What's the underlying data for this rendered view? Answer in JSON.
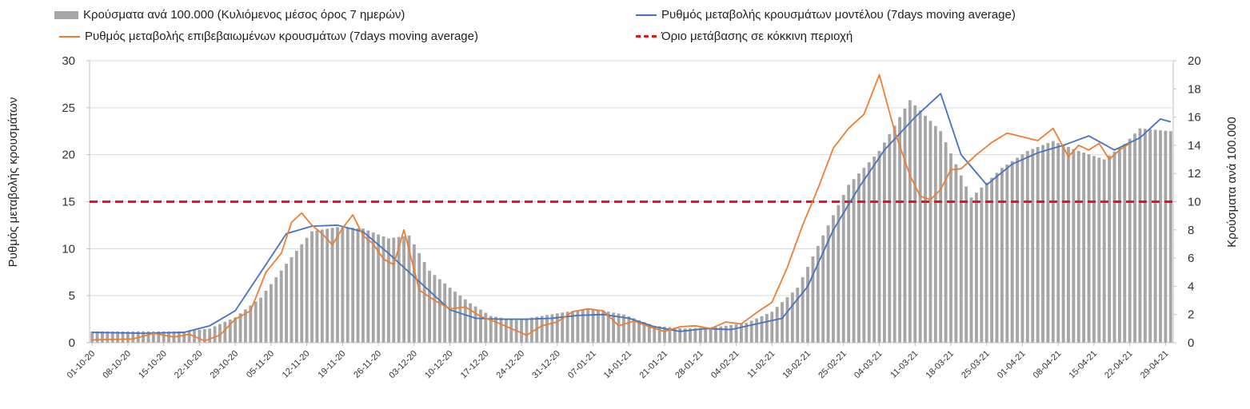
{
  "chart_data": {
    "type": "bar",
    "legend": {
      "placement": "top",
      "items": [
        {
          "label": "Κρούσματα ανά 100.000 (Κυλιόμενος μέσος όρος 7 ημερών)",
          "kind": "bar",
          "color": "#a6a6a6"
        },
        {
          "label": "Ρυθμός μεταβολής κρουσμάτων μοντέλου (7days moving average)",
          "kind": "line",
          "color": "#4472c4"
        },
        {
          "label": "Ρυθμός μεταβολής επιβεβαιωμένων κρουσμάτων (7days moving average)",
          "kind": "line",
          "color": "#ed7d31"
        },
        {
          "label": "Όριο μετάβασης σε κόκκινη περιοχή",
          "kind": "dashed",
          "color": "#e8141b"
        }
      ]
    },
    "ylabel": "Ρυθμός μεταβολής κρουσμάτων",
    "y2label": "Κρούσματα ανά 100.000",
    "ylim": [
      0,
      30
    ],
    "yticks": [
      0,
      5,
      10,
      15,
      20,
      25,
      30
    ],
    "y2lim": [
      0,
      20
    ],
    "y2ticks": [
      0,
      2,
      4,
      6,
      8,
      10,
      12,
      14,
      16,
      18,
      20
    ],
    "grid": true,
    "threshold": 15,
    "x_tick_labels": [
      "01-10-20",
      "08-10-20",
      "15-10-20",
      "22-10-20",
      "29-10-20",
      "05-11-20",
      "12-11-20",
      "19-11-20",
      "26-11-20",
      "03-12-20",
      "10-12-20",
      "17-12-20",
      "24-12-20",
      "31-12-20",
      "07-01-21",
      "14-01-21",
      "21-01-21",
      "28-01-21",
      "04-02-21",
      "11-02-21",
      "18-02-21",
      "25-02-21",
      "04-03-21",
      "11-03-21",
      "18-03-21",
      "25-03-21",
      "01-04-21",
      "08-04-21",
      "15-04-21",
      "22-04-21",
      "29-04-21"
    ],
    "n_days": 212,
    "bars_cases_per_100k": {
      "anchors_day": [
        0,
        12,
        18,
        23,
        28,
        33,
        38,
        43,
        48,
        53,
        58,
        62,
        66,
        70,
        74,
        78,
        83,
        88,
        93,
        98,
        104,
        110,
        116,
        122,
        128,
        133,
        138,
        143,
        148,
        154,
        160,
        166,
        172,
        178,
        183,
        188,
        193,
        198,
        202,
        205,
        208,
        211
      ],
      "anchors_val": [
        0.8,
        0.8,
        0.8,
        1.0,
        1.8,
        3.2,
        5.6,
        7.9,
        8.2,
        8.1,
        7.4,
        7.6,
        5.1,
        3.9,
        2.8,
        1.9,
        1.6,
        1.9,
        2.2,
        2.4,
        2.0,
        1.2,
        1.0,
        1.1,
        1.4,
        2.2,
        3.9,
        7.6,
        11.2,
        13.6,
        17.2,
        15.0,
        10.3,
        12.4,
        13.6,
        14.3,
        13.6,
        13.0,
        14.1,
        15.2,
        15.1,
        15.0
      ]
    },
    "series": [
      {
        "name": "Ρυθμός μεταβολής κρουσμάτων μοντέλου (7days moving average)",
        "anchors_day": [
          0,
          10,
          18,
          23,
          28,
          33,
          38,
          43,
          48,
          53,
          58,
          64,
          70,
          75,
          80,
          85,
          90,
          95,
          100,
          105,
          110,
          115,
          120,
          125,
          130,
          135,
          140,
          145,
          150,
          155,
          161,
          166,
          170,
          175,
          180,
          185,
          190,
          195,
          200,
          205,
          209,
          211
        ],
        "anchors_val": [
          1.1,
          1.0,
          1.1,
          1.8,
          3.4,
          7.5,
          11.6,
          12.4,
          12.5,
          11.8,
          9.5,
          6.5,
          3.5,
          2.6,
          2.5,
          2.5,
          2.6,
          2.9,
          3.0,
          2.6,
          1.7,
          1.2,
          1.5,
          1.4,
          2.0,
          2.6,
          6.0,
          12.0,
          16.5,
          20.5,
          24.0,
          26.5,
          20.0,
          16.8,
          19.0,
          20.2,
          21.0,
          22.0,
          20.5,
          21.8,
          23.8,
          23.5
        ]
      },
      {
        "name": "Ρυθμός μεταβολής επιβεβαιωμένων κρουσμάτων (7days moving average)",
        "anchors_day": [
          0,
          8,
          12,
          16,
          19,
          22,
          25,
          28,
          31,
          34,
          37,
          39,
          41,
          43,
          45,
          47,
          49,
          51,
          53,
          55,
          57,
          59,
          61,
          64,
          67,
          70,
          73,
          76,
          79,
          82,
          85,
          88,
          91,
          94,
          97,
          100,
          103,
          106,
          109,
          112,
          115,
          118,
          121,
          124,
          127,
          130,
          133,
          136,
          139,
          142,
          145,
          148,
          151,
          154,
          157,
          160,
          162,
          164,
          166,
          168,
          170,
          173,
          176,
          179,
          182,
          185,
          188,
          191,
          193,
          195,
          197,
          199,
          201,
          203
        ],
        "anchors_val": [
          0.3,
          0.4,
          1.0,
          0.6,
          0.9,
          0.2,
          0.8,
          2.5,
          3.4,
          7.5,
          9.5,
          12.8,
          13.8,
          12.5,
          11.6,
          10.4,
          12.2,
          13.6,
          11.4,
          10.5,
          8.9,
          8.3,
          12.0,
          5.6,
          4.5,
          3.6,
          3.8,
          2.8,
          2.2,
          1.5,
          0.8,
          1.8,
          2.2,
          3.3,
          3.6,
          3.4,
          1.8,
          2.3,
          1.7,
          1.2,
          1.7,
          1.8,
          1.5,
          2.2,
          2.0,
          3.2,
          4.3,
          8.0,
          12.5,
          16.4,
          20.7,
          22.8,
          24.3,
          28.5,
          22.5,
          17.8,
          15.6,
          15.2,
          16.3,
          18.4,
          18.5,
          20.0,
          21.3,
          22.3,
          21.9,
          21.5,
          22.8,
          19.8,
          21.0,
          20.5,
          21.2,
          19.5,
          20.5,
          21.2
        ]
      }
    ]
  }
}
